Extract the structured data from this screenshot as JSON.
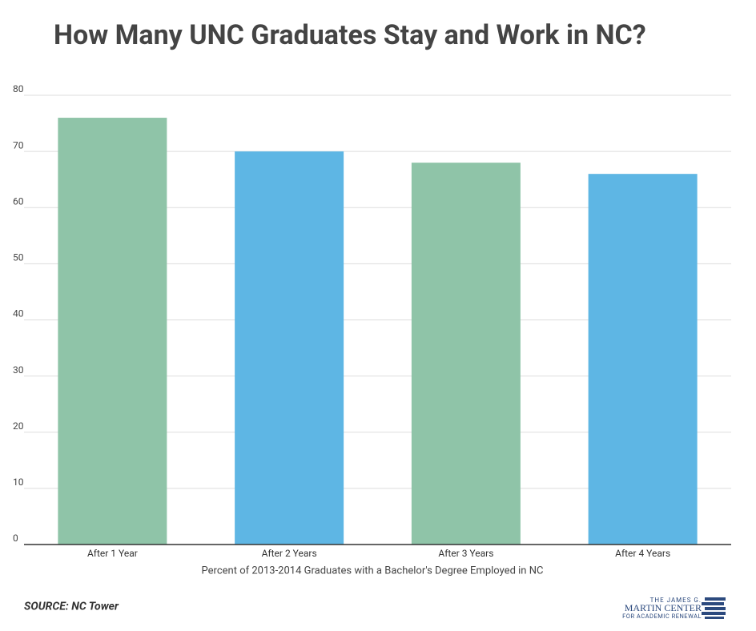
{
  "chart_data": {
    "type": "bar",
    "title": "How Many UNC Graduates Stay and Work in NC?",
    "x_label": "Percent of 2013-2014 Graduates with a Bachelor's Degree Employed in NC",
    "categories": [
      "After 1 Year",
      "After 2 Years",
      "After 3 Years",
      "After 4 Years"
    ],
    "values": [
      76,
      70,
      68,
      66
    ],
    "colors": [
      "#8fc4a8",
      "#5eb6e4",
      "#8fc4a8",
      "#5eb6e4"
    ],
    "ylim": [
      0,
      80
    ],
    "yticks": [
      0,
      10,
      20,
      30,
      40,
      50,
      60,
      70,
      80
    ],
    "grid": true,
    "source": "SOURCE: NC Tower",
    "logo": [
      "THE JAMES G.",
      "MARTIN CENTER",
      "FOR ACADEMIC RENEWAL"
    ]
  }
}
